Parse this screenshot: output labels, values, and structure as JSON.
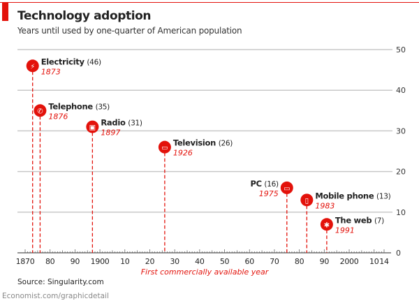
{
  "header": {
    "title": "Technology adoption",
    "subtitle": "Years until used by one-quarter of American population"
  },
  "footer": {
    "source": "Source: Singularity.com",
    "credit": "Economist.com/graphicdetail"
  },
  "chart_data": {
    "type": "scatter",
    "title": "Technology adoption",
    "subtitle": "Years until used by one-quarter of American population",
    "xlabel": "First commercially available year",
    "ylabel": "",
    "xlim": [
      1870,
      2014
    ],
    "ylim": [
      0,
      50
    ],
    "grid": true,
    "colors": {
      "accent": "#e3120b",
      "grid": "#c8c8c8",
      "text": "#222222"
    },
    "x_tick_labels": [
      {
        "v": 1870,
        "t": "1870"
      },
      {
        "v": 1880,
        "t": "80"
      },
      {
        "v": 1890,
        "t": "90"
      },
      {
        "v": 1900,
        "t": "1900"
      },
      {
        "v": 1910,
        "t": "10"
      },
      {
        "v": 1920,
        "t": "20"
      },
      {
        "v": 1930,
        "t": "30"
      },
      {
        "v": 1940,
        "t": "40"
      },
      {
        "v": 1950,
        "t": "50"
      },
      {
        "v": 1960,
        "t": "60"
      },
      {
        "v": 1970,
        "t": "70"
      },
      {
        "v": 1980,
        "t": "80"
      },
      {
        "v": 1990,
        "t": "90"
      },
      {
        "v": 2000,
        "t": "2000"
      },
      {
        "v": 2010,
        "t": "10"
      },
      {
        "v": 2014,
        "t": "14"
      }
    ],
    "y_ticks": [
      0,
      10,
      20,
      30,
      40,
      50
    ],
    "points": [
      {
        "name": "Electricity",
        "x": 1873,
        "y": 46,
        "value_label": "(46)",
        "year_label": "1873",
        "icon": "lightning-icon",
        "label_side": "right"
      },
      {
        "name": "Telephone",
        "x": 1876,
        "y": 35,
        "value_label": "(35)",
        "year_label": "1876",
        "icon": "phone-icon",
        "label_side": "right"
      },
      {
        "name": "Radio",
        "x": 1897,
        "y": 31,
        "value_label": "(31)",
        "year_label": "1897",
        "icon": "radio-icon",
        "label_side": "right"
      },
      {
        "name": "Television",
        "x": 1926,
        "y": 26,
        "value_label": "(26)",
        "year_label": "1926",
        "icon": "television-icon",
        "label_side": "right"
      },
      {
        "name": "PC",
        "x": 1975,
        "y": 16,
        "value_label": "(16)",
        "year_label": "1975",
        "icon": "computer-icon",
        "label_side": "left"
      },
      {
        "name": "Mobile phone",
        "x": 1983,
        "y": 13,
        "value_label": "(13)",
        "year_label": "1983",
        "icon": "mobile-phone-icon",
        "label_side": "right"
      },
      {
        "name": "The web",
        "x": 1991,
        "y": 7,
        "value_label": "(7)",
        "year_label": "1991",
        "icon": "web-icon",
        "label_side": "right"
      }
    ]
  }
}
